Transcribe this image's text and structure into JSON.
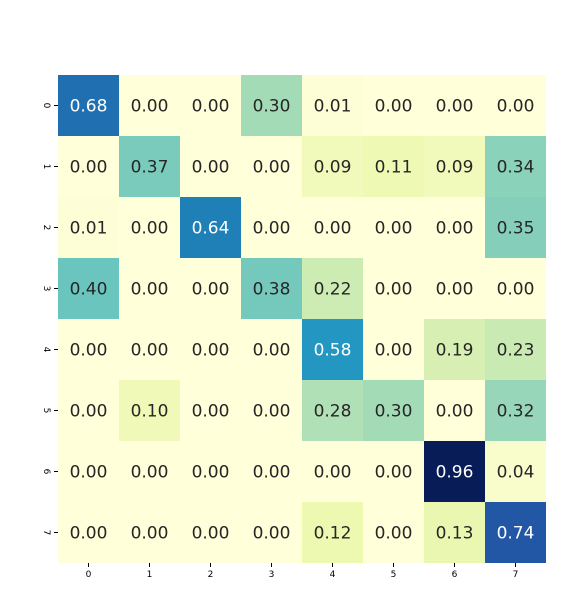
{
  "chart_data": {
    "type": "heatmap",
    "title": "",
    "xlabel": "",
    "ylabel": "",
    "x_categories": [
      "0",
      "1",
      "2",
      "3",
      "4",
      "5",
      "6",
      "7"
    ],
    "y_categories": [
      "0",
      "1",
      "2",
      "3",
      "4",
      "5",
      "6",
      "7"
    ],
    "values": [
      [
        0.68,
        0.0,
        0.0,
        0.3,
        0.01,
        0.0,
        0.0,
        0.0
      ],
      [
        0.0,
        0.37,
        0.0,
        0.0,
        0.09,
        0.11,
        0.09,
        0.34
      ],
      [
        0.01,
        0.0,
        0.64,
        0.0,
        0.0,
        0.0,
        0.0,
        0.35
      ],
      [
        0.4,
        0.0,
        0.0,
        0.38,
        0.22,
        0.0,
        0.0,
        0.0
      ],
      [
        0.0,
        0.0,
        0.0,
        0.0,
        0.58,
        0.0,
        0.19,
        0.23
      ],
      [
        0.0,
        0.1,
        0.0,
        0.0,
        0.28,
        0.3,
        0.0,
        0.32
      ],
      [
        0.0,
        0.0,
        0.0,
        0.0,
        0.0,
        0.0,
        0.96,
        0.04
      ],
      [
        0.0,
        0.0,
        0.0,
        0.0,
        0.12,
        0.0,
        0.13,
        0.74
      ]
    ],
    "value_range": [
      0,
      0.96
    ],
    "value_format": "0.00",
    "colormap": "YlGnBu",
    "colorbar": false,
    "grid": false
  }
}
